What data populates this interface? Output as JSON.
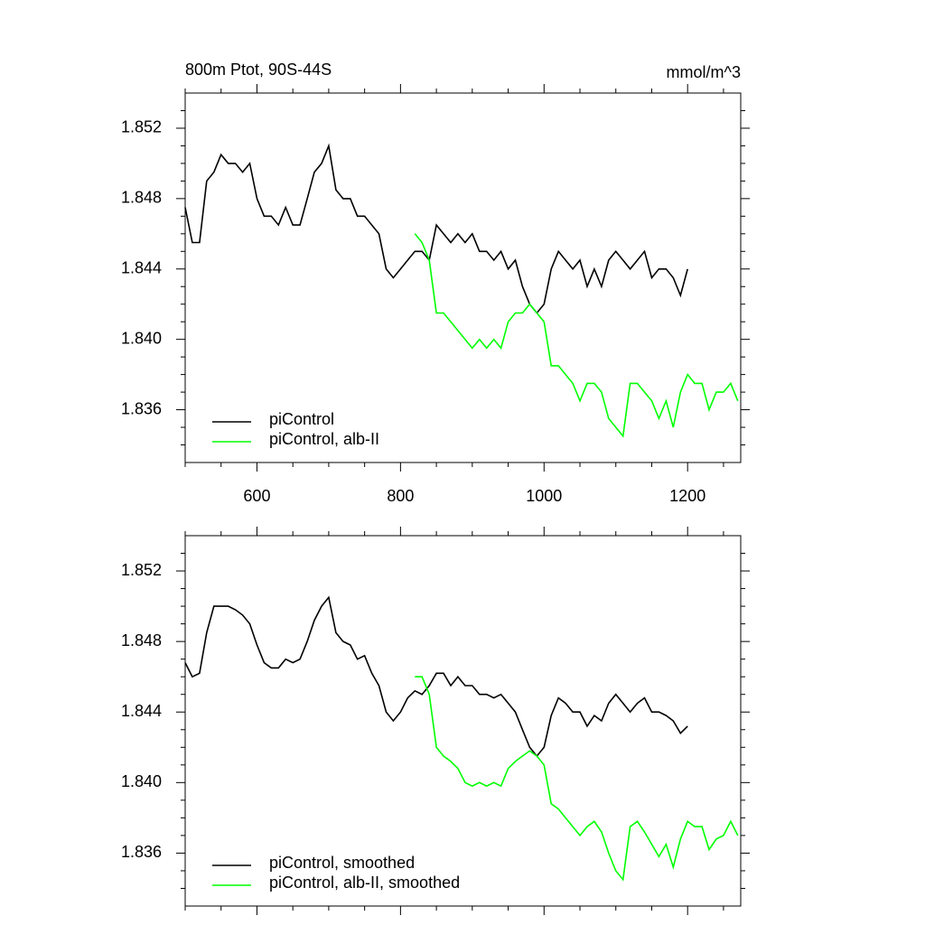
{
  "chart_data": [
    {
      "type": "line",
      "title": "800m Ptot, 90S-44S",
      "units": "mmol/m^3",
      "x": [
        500,
        510,
        520,
        530,
        540,
        550,
        560,
        570,
        580,
        590,
        600,
        610,
        620,
        630,
        640,
        650,
        660,
        670,
        680,
        690,
        700,
        710,
        720,
        730,
        740,
        750,
        760,
        770,
        780,
        790,
        800,
        810,
        820,
        830,
        840,
        850,
        860,
        870,
        880,
        890,
        900,
        910,
        920,
        930,
        940,
        950,
        960,
        970,
        980,
        990,
        1000,
        1010,
        1020,
        1030,
        1040,
        1050,
        1060,
        1070,
        1080,
        1090,
        1100,
        1110,
        1120,
        1130,
        1140,
        1150,
        1160,
        1170,
        1180,
        1190,
        1200,
        1210,
        1220,
        1230,
        1240,
        1250,
        1260,
        1270
      ],
      "series": [
        {
          "name": "piControl",
          "color": "#000000",
          "values": [
            1.8475,
            1.8455,
            1.8455,
            1.849,
            1.8495,
            1.8505,
            1.85,
            1.85,
            1.8495,
            1.85,
            1.848,
            1.847,
            1.847,
            1.8465,
            1.8475,
            1.8465,
            1.8465,
            1.848,
            1.8495,
            1.85,
            1.851,
            1.8485,
            1.848,
            1.848,
            1.847,
            1.847,
            1.8465,
            1.846,
            1.844,
            1.8435,
            1.844,
            1.8445,
            1.845,
            1.845,
            1.8445,
            1.8465,
            1.846,
            1.8455,
            1.846,
            1.8455,
            1.846,
            1.845,
            1.845,
            1.8445,
            1.845,
            1.844,
            1.8445,
            1.843,
            1.842,
            1.8415,
            1.842,
            1.844,
            1.845,
            1.8445,
            1.844,
            1.8445,
            1.843,
            1.844,
            1.843,
            1.8445,
            1.845,
            1.8445,
            1.844,
            1.8445,
            1.845,
            1.8435,
            1.844,
            1.844,
            1.8435,
            1.8425,
            1.844,
            null,
            null,
            null,
            null,
            null,
            null,
            null
          ]
        },
        {
          "name": "piControl, alb-II",
          "color": "#00ff00",
          "values": [
            null,
            null,
            null,
            null,
            null,
            null,
            null,
            null,
            null,
            null,
            null,
            null,
            null,
            null,
            null,
            null,
            null,
            null,
            null,
            null,
            null,
            null,
            null,
            null,
            null,
            null,
            null,
            null,
            null,
            null,
            null,
            null,
            1.846,
            1.8455,
            1.8445,
            1.8415,
            1.8415,
            1.841,
            1.8405,
            1.84,
            1.8395,
            1.84,
            1.8395,
            1.84,
            1.8395,
            1.841,
            1.8415,
            1.8415,
            1.842,
            1.8415,
            1.841,
            1.8385,
            1.8385,
            1.838,
            1.8375,
            1.8365,
            1.8375,
            1.8375,
            1.837,
            1.8355,
            1.835,
            1.8345,
            1.8375,
            1.8375,
            1.837,
            1.8365,
            1.8355,
            1.8365,
            1.835,
            1.837,
            1.838,
            1.8375,
            1.8375,
            1.836,
            1.837,
            1.837,
            1.8375,
            1.8365
          ]
        }
      ],
      "xlim": [
        500,
        1274
      ],
      "xticks": [
        600,
        800,
        1000,
        1200
      ],
      "xminorticks": [
        500,
        550,
        650,
        700,
        750,
        850,
        900,
        950,
        1050,
        1100,
        1150,
        1250
      ],
      "show_xtick_labels": true,
      "ylim": [
        1.833,
        1.854
      ],
      "yticks": [
        1.836,
        {
          "value": 1.84,
          "label": "1.840"
        },
        1.844,
        1.848,
        1.852
      ],
      "yminorticks": [
        1.834,
        1.835,
        1.837,
        1.838,
        1.839,
        1.841,
        1.842,
        1.843,
        1.845,
        1.846,
        1.847,
        1.849,
        1.85,
        1.851,
        1.853
      ]
    },
    {
      "type": "line",
      "x": [
        500,
        510,
        520,
        530,
        540,
        550,
        560,
        570,
        580,
        590,
        600,
        610,
        620,
        630,
        640,
        650,
        660,
        670,
        680,
        690,
        700,
        710,
        720,
        730,
        740,
        750,
        760,
        770,
        780,
        790,
        800,
        810,
        820,
        830,
        840,
        850,
        860,
        870,
        880,
        890,
        900,
        910,
        920,
        930,
        940,
        950,
        960,
        970,
        980,
        990,
        1000,
        1010,
        1020,
        1030,
        1040,
        1050,
        1060,
        1070,
        1080,
        1090,
        1100,
        1110,
        1120,
        1130,
        1140,
        1150,
        1160,
        1170,
        1180,
        1190,
        1200,
        1210,
        1220,
        1230,
        1240,
        1250,
        1260,
        1270
      ],
      "series": [
        {
          "name": "piControl, smoothed",
          "color": "#000000",
          "values": [
            1.8468,
            1.846,
            1.8462,
            1.8485,
            1.85,
            1.85,
            1.85,
            1.8498,
            1.8495,
            1.849,
            1.8478,
            1.8468,
            1.8465,
            1.8465,
            1.847,
            1.8468,
            1.847,
            1.848,
            1.8492,
            1.85,
            1.8505,
            1.8485,
            1.848,
            1.8478,
            1.847,
            1.8472,
            1.8462,
            1.8455,
            1.844,
            1.8435,
            1.844,
            1.8448,
            1.8452,
            1.845,
            1.8455,
            1.8462,
            1.8462,
            1.8455,
            1.846,
            1.8455,
            1.8455,
            1.845,
            1.845,
            1.8448,
            1.845,
            1.8445,
            1.844,
            1.843,
            1.842,
            1.8415,
            1.842,
            1.8438,
            1.8448,
            1.8445,
            1.844,
            1.844,
            1.8432,
            1.8438,
            1.8435,
            1.8445,
            1.845,
            1.8445,
            1.844,
            1.8445,
            1.8448,
            1.844,
            1.844,
            1.8438,
            1.8435,
            1.8428,
            1.8432,
            null,
            null,
            null,
            null,
            null,
            null,
            null
          ]
        },
        {
          "name": "piControl, alb-II, smoothed",
          "color": "#00ff00",
          "values": [
            null,
            null,
            null,
            null,
            null,
            null,
            null,
            null,
            null,
            null,
            null,
            null,
            null,
            null,
            null,
            null,
            null,
            null,
            null,
            null,
            null,
            null,
            null,
            null,
            null,
            null,
            null,
            null,
            null,
            null,
            null,
            null,
            1.846,
            1.846,
            1.845,
            1.842,
            1.8415,
            1.8412,
            1.8408,
            1.84,
            1.8398,
            1.84,
            1.8398,
            1.84,
            1.8398,
            1.8408,
            1.8412,
            1.8415,
            1.8418,
            1.8415,
            1.841,
            1.8388,
            1.8385,
            1.838,
            1.8375,
            1.837,
            1.8375,
            1.8378,
            1.8372,
            1.836,
            1.835,
            1.8345,
            1.8375,
            1.8378,
            1.8372,
            1.8365,
            1.8358,
            1.8365,
            1.8352,
            1.8368,
            1.8378,
            1.8375,
            1.8375,
            1.8362,
            1.8368,
            1.837,
            1.8378,
            1.837
          ]
        }
      ],
      "xlim": [
        500,
        1274
      ],
      "xticks": [
        600,
        800,
        1000,
        1200
      ],
      "xminorticks": [
        500,
        550,
        650,
        700,
        750,
        850,
        900,
        950,
        1050,
        1100,
        1150,
        1250
      ],
      "show_xtick_labels": false,
      "ylim": [
        1.833,
        1.854
      ],
      "yticks": [
        1.836,
        {
          "value": 1.84,
          "label": "1.840"
        },
        1.844,
        1.848,
        1.852
      ],
      "yminorticks": [
        1.834,
        1.835,
        1.837,
        1.838,
        1.839,
        1.841,
        1.842,
        1.843,
        1.845,
        1.846,
        1.847,
        1.849,
        1.85,
        1.851,
        1.853
      ]
    }
  ]
}
